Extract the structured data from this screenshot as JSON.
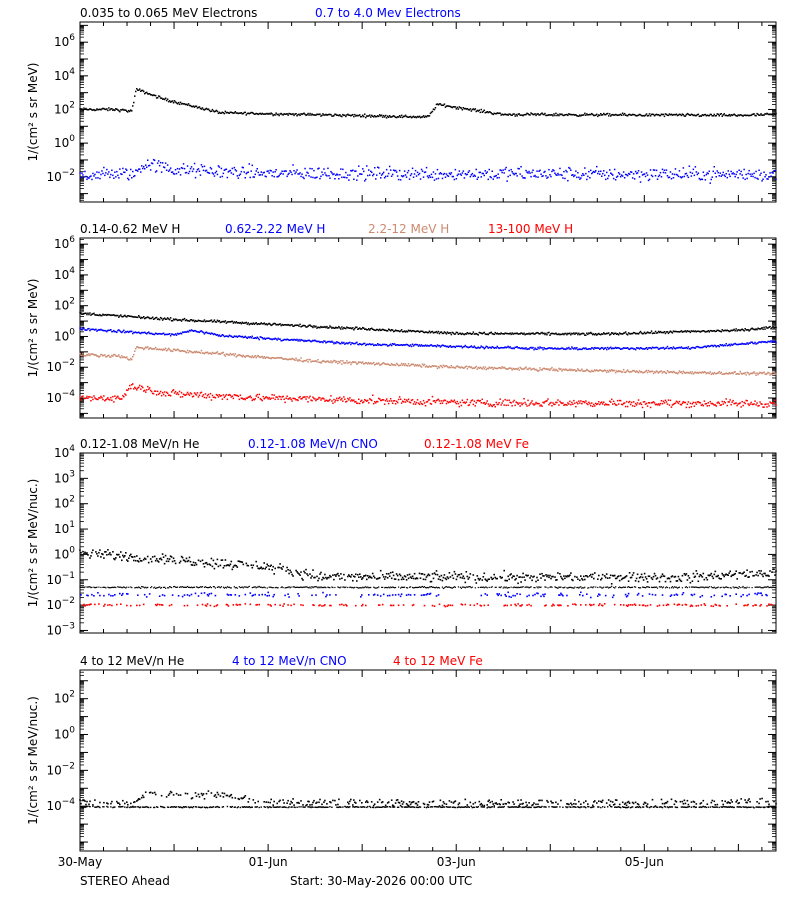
{
  "colors": {
    "black": "#000000",
    "blue": "#0000ff",
    "tan": "#cc8a70",
    "red": "#ff0000"
  },
  "footer": {
    "spacecraft": "STEREO Ahead",
    "start": "Start: 30-May-2026 00:00 UTC"
  },
  "chart_data": [
    {
      "type": "scatter",
      "scale": "log",
      "ylabel": "1/(cm² s sr MeV)",
      "ylim_exp": [
        -3.5,
        7.2
      ],
      "ticks": [
        -2,
        0,
        2,
        4,
        6
      ],
      "legend": [
        {
          "name": "0.035 to 0.065 MeV Electrons",
          "color": "black"
        },
        {
          "name": "0.7 to 4.0 Mev Electrons",
          "color": "blue"
        }
      ],
      "series": [
        {
          "color": "black",
          "size": 1.5,
          "scatter": 0.05,
          "profile": [
            [
              0,
              2.0
            ],
            [
              0.35,
              2.0
            ],
            [
              0.55,
              1.9
            ],
            [
              0.6,
              3.2
            ],
            [
              0.9,
              2.6
            ],
            [
              1.5,
              1.8
            ],
            [
              3.7,
              1.55
            ],
            [
              3.8,
              2.3
            ],
            [
              4.5,
              1.7
            ],
            [
              7.0,
              1.65
            ],
            [
              9.2,
              1.9
            ],
            [
              11.0,
              1.9
            ],
            [
              11.3,
              2.1
            ],
            [
              12.3,
              1.95
            ],
            [
              13.2,
              1.95
            ],
            [
              13.8,
              2.35
            ],
            [
              15.0,
              2.4
            ]
          ]
        },
        {
          "color": "blue",
          "size": 1.5,
          "scatter": 0.25,
          "profile": [
            [
              0,
              -1.9
            ],
            [
              0.6,
              -1.8
            ],
            [
              0.7,
              -1.2
            ],
            [
              1.0,
              -1.6
            ],
            [
              2.0,
              -1.8
            ],
            [
              10.0,
              -1.9
            ],
            [
              14.0,
              -1.6
            ],
            [
              15.0,
              -1.35
            ]
          ]
        }
      ]
    },
    {
      "type": "scatter",
      "scale": "log",
      "ylabel": "1/(cm² s sr MeV)",
      "ylim_exp": [
        -5.3,
        6.4
      ],
      "ticks": [
        -4,
        -2,
        0,
        2,
        4,
        6
      ],
      "legend": [
        {
          "name": "0.14-0.62 MeV H",
          "color": "black"
        },
        {
          "name": "0.62-2.22 MeV H",
          "color": "blue"
        },
        {
          "name": "2.2-12 MeV H",
          "color": "tan"
        },
        {
          "name": "13-100 MeV H",
          "color": "red"
        }
      ],
      "series": [
        {
          "color": "black",
          "size": 1.5,
          "scatter": 0.05,
          "profile": [
            [
              0,
              1.5
            ],
            [
              0.5,
              1.3
            ],
            [
              1.0,
              1.1
            ],
            [
              2.0,
              0.8
            ],
            [
              3.0,
              0.5
            ],
            [
              4.0,
              0.2
            ],
            [
              5.5,
              0.15
            ],
            [
              7.0,
              0.4
            ],
            [
              8.0,
              0.9
            ],
            [
              9.0,
              0.7
            ],
            [
              9.2,
              0.3
            ],
            [
              10.5,
              0.2
            ],
            [
              11.0,
              0.05
            ],
            [
              11.5,
              0.2
            ],
            [
              12.5,
              0.3
            ],
            [
              14.0,
              0.4
            ],
            [
              15.0,
              0.6
            ]
          ]
        },
        {
          "color": "blue",
          "size": 1.5,
          "scatter": 0.05,
          "profile": [
            [
              0,
              0.5
            ],
            [
              0.5,
              0.3
            ],
            [
              1.0,
              0.1
            ],
            [
              1.2,
              0.4
            ],
            [
              1.5,
              0.05
            ],
            [
              3.0,
              -0.5
            ],
            [
              5.0,
              -0.8
            ],
            [
              6.5,
              -0.75
            ],
            [
              7.8,
              -0.1
            ],
            [
              9.0,
              -0.5
            ],
            [
              11.0,
              -0.9
            ],
            [
              12.5,
              -1.1
            ],
            [
              14.0,
              -0.9
            ],
            [
              15.0,
              -0.7
            ]
          ]
        },
        {
          "color": "tan",
          "size": 1.5,
          "scatter": 0.06,
          "profile": [
            [
              0,
              -1.2
            ],
            [
              0.4,
              -1.25
            ],
            [
              0.55,
              -1.5
            ],
            [
              0.6,
              -0.7
            ],
            [
              1.2,
              -1.0
            ],
            [
              2.5,
              -1.6
            ],
            [
              4.0,
              -2.0
            ],
            [
              6.0,
              -2.3
            ],
            [
              8.0,
              -2.5
            ],
            [
              10.0,
              -2.55
            ],
            [
              11.0,
              -2.8
            ],
            [
              11.5,
              -3.3
            ],
            [
              13.0,
              -3.4
            ],
            [
              13.6,
              -3.4
            ],
            [
              14.2,
              -3.0
            ],
            [
              15.0,
              -2.3
            ]
          ]
        },
        {
          "color": "red",
          "size": 1.5,
          "scatter": 0.15,
          "profile": [
            [
              0,
              -4.0
            ],
            [
              0.45,
              -4.0
            ],
            [
              0.55,
              -3.2
            ],
            [
              0.9,
              -3.7
            ],
            [
              2.0,
              -4.0
            ],
            [
              4.0,
              -4.3
            ],
            [
              14.0,
              -4.5
            ],
            [
              14.6,
              -3.8
            ],
            [
              15.0,
              -2.9
            ]
          ]
        }
      ]
    },
    {
      "type": "scatter",
      "scale": "log",
      "ylabel": "1/(cm² s sr MeV/nuc.)",
      "ylim_exp": [
        -3.1,
        4.0
      ],
      "ticks": [
        -3,
        -2,
        -1,
        0,
        1,
        2,
        3,
        4
      ],
      "legend": [
        {
          "name": "0.12-1.08 MeV/n He",
          "color": "black"
        },
        {
          "name": "0.12-1.08 MeV/n CNO",
          "color": "blue"
        },
        {
          "name": "0.12-1.08 MeV Fe",
          "color": "red"
        }
      ],
      "series": [
        {
          "color": "black",
          "size": 1.6,
          "scatter": 0.12,
          "density": 0.9,
          "profile": [
            [
              0,
              0.05
            ],
            [
              1.0,
              -0.2
            ],
            [
              2.0,
              -0.5
            ],
            [
              2.6,
              -0.9
            ],
            [
              6.5,
              -0.9
            ],
            [
              7.5,
              -0.7
            ],
            [
              8.2,
              -0.4
            ],
            [
              8.6,
              0.3
            ],
            [
              9.5,
              -0.6
            ],
            [
              10.0,
              -0.9
            ],
            [
              14.0,
              -0.8
            ],
            [
              15.0,
              -0.6
            ]
          ]
        },
        {
          "color": "black",
          "size": 1.2,
          "scatter": 0.02,
          "density": 0.8,
          "profile": [
            [
              0,
              -1.3
            ],
            [
              15,
              -1.3
            ]
          ]
        },
        {
          "color": "blue",
          "size": 1.6,
          "scatter": 0.05,
          "density": 0.25,
          "profile": [
            [
              0,
              -1.6
            ],
            [
              8.3,
              -1.6
            ],
            [
              8.6,
              -1.0
            ],
            [
              8.9,
              -1.6
            ],
            [
              15,
              -1.6
            ]
          ]
        },
        {
          "color": "red",
          "size": 1.6,
          "scatter": 0.03,
          "density": 0.3,
          "profile": [
            [
              0,
              -2.0
            ],
            [
              8.3,
              -2.0
            ],
            [
              8.6,
              -1.3
            ],
            [
              8.9,
              -2.0
            ],
            [
              15,
              -2.0
            ]
          ]
        }
      ]
    },
    {
      "type": "scatter",
      "scale": "log",
      "ylabel": "1/(cm² s sr MeV/nuc.)",
      "ylim_exp": [
        -6.5,
        3.6
      ],
      "ticks": [
        -4,
        -2,
        0,
        2
      ],
      "legend": [
        {
          "name": "4 to 12 MeV/n He",
          "color": "black"
        },
        {
          "name": "4 to 12 MeV/n CNO",
          "color": "blue"
        },
        {
          "name": "4 to 12 MeV Fe",
          "color": "red"
        }
      ],
      "series": [
        {
          "color": "black",
          "size": 1.4,
          "scatter": 0.02,
          "density": 0.7,
          "profile": [
            [
              0,
              -4.05
            ],
            [
              15,
              -4.05
            ]
          ]
        },
        {
          "color": "black",
          "size": 1.6,
          "scatter": 0.12,
          "density": 0.5,
          "profile": [
            [
              0,
              -3.8
            ],
            [
              0.6,
              -3.8
            ],
            [
              0.7,
              -3.3
            ],
            [
              1.6,
              -3.4
            ],
            [
              1.9,
              -3.8
            ],
            [
              2.2,
              -3.8
            ]
          ]
        }
      ]
    }
  ],
  "x_axis": {
    "range_days": [
      0,
      7.4
    ],
    "tick_labels": [
      {
        "label": "30-May",
        "day": 0
      },
      {
        "label": "01-Jun",
        "day": 2
      },
      {
        "label": "03-Jun",
        "day": 4
      },
      {
        "label": "05-Jun",
        "day": 6
      }
    ]
  }
}
